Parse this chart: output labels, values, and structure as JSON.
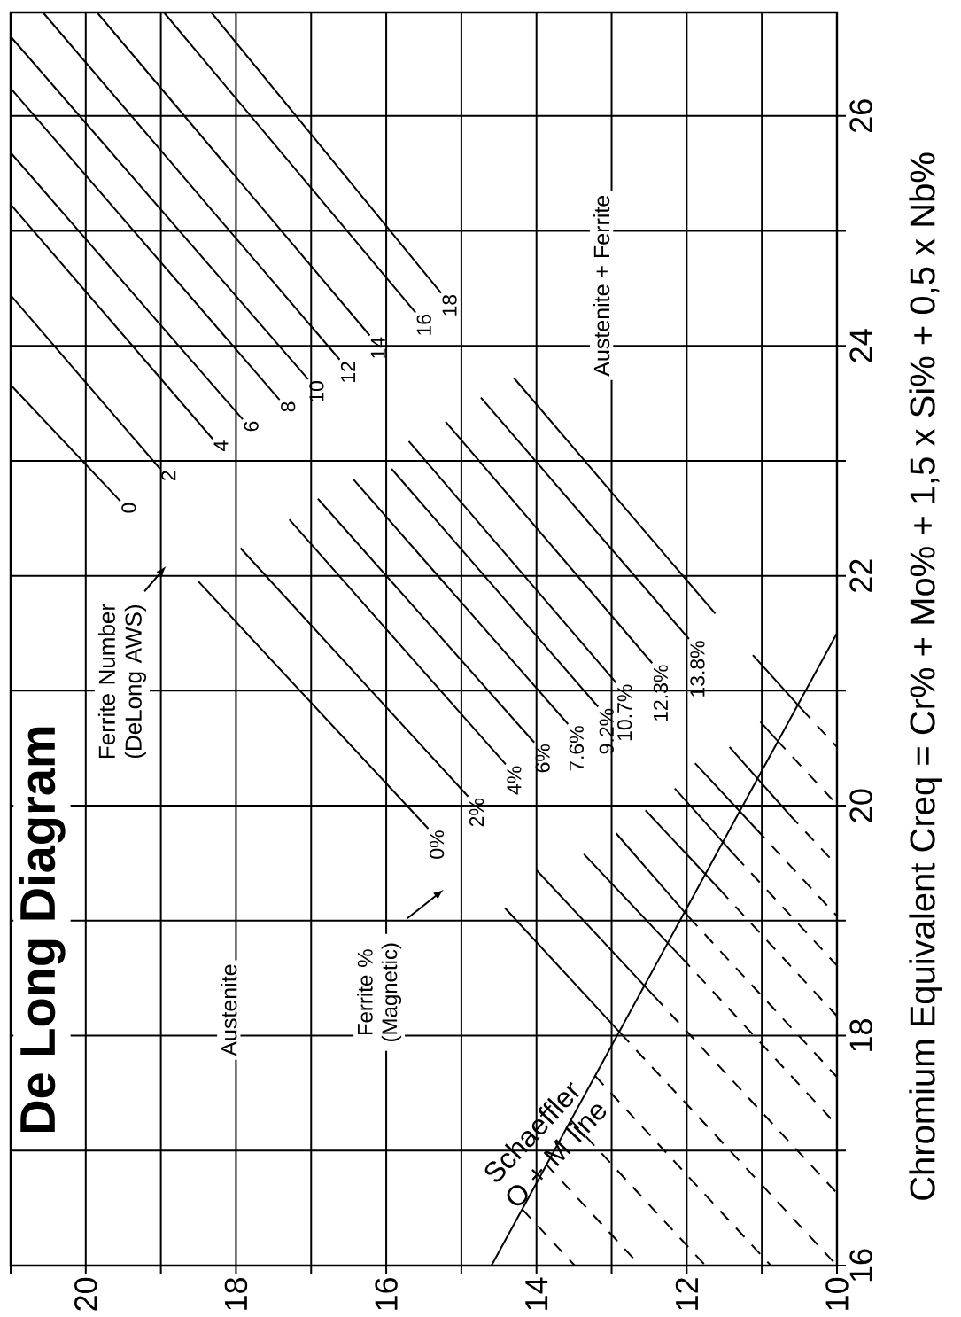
{
  "chart_data": {
    "type": "line",
    "title": "De Long Diagram",
    "ylabel": "Chromium Equivalent Creq = Cr% + Mo% + 1,5 x Si% + 0,5 x Nb%",
    "xlim": [
      21,
      10
    ],
    "ylim": [
      16,
      26.9
    ],
    "xticks": [
      {
        "value": 21,
        "label": null
      },
      20,
      {
        "value": 19,
        "label": null
      },
      18,
      {
        "value": 17,
        "label": null
      },
      16,
      {
        "value": 15,
        "label": null
      },
      14,
      {
        "value": 13,
        "label": null
      },
      12,
      {
        "value": 11,
        "label": null
      },
      10
    ],
    "yticks": [
      16,
      {
        "value": 17,
        "label": null
      },
      18,
      {
        "value": 19,
        "label": null
      },
      20,
      {
        "value": 21,
        "label": null
      },
      22,
      {
        "value": 23,
        "label": null
      },
      24,
      {
        "value": 25,
        "label": null
      },
      26
    ],
    "grid": true,
    "line_style": "solid",
    "series": [
      {
        "color": "#000000",
        "x": [
          21.0,
          19.54
        ],
        "values": [
          23.66,
          22.65
        ]
      },
      {
        "color": "#000000",
        "x": [
          18.5,
          15.44
        ],
        "values": [
          21.95,
          19.8
        ]
      },
      {
        "color": "#000000",
        "x": [
          14.42,
          12.88
        ],
        "values": [
          19.11,
          18.02
        ]
      },
      {
        "color": "#000000",
        "x": [
          12.88,
          10.0
        ],
        "values": [
          18.02,
          16.0
        ],
        "line_style": "dashed"
      },
      {
        "color": "#000000",
        "x": [
          21.0,
          19.01
        ],
        "values": [
          24.44,
          22.93
        ]
      },
      {
        "color": "#000000",
        "x": [
          17.94,
          14.91
        ],
        "values": [
          22.24,
          20.08
        ]
      },
      {
        "color": "#000000",
        "x": [
          14.0,
          12.43
        ],
        "values": [
          19.44,
          18.34
        ]
      },
      {
        "color": "#000000",
        "x": [
          12.43,
          10.0
        ],
        "values": [
          18.34,
          16.63
        ],
        "line_style": "dashed"
      },
      {
        "color": "#000000",
        "x": [
          21.0,
          18.31
        ],
        "values": [
          25.23,
          23.19
        ]
      },
      {
        "color": "#000000",
        "x": [
          17.29,
          14.41
        ],
        "values": [
          22.49,
          20.36
        ]
      },
      {
        "color": "#000000",
        "x": [
          13.37,
          12.07
        ],
        "values": [
          19.58,
          18.68
        ]
      },
      {
        "color": "#000000",
        "x": [
          12.07,
          10.0
        ],
        "values": [
          18.68,
          17.22
        ],
        "line_style": "dashed"
      },
      {
        "color": "#000000",
        "x": [
          21.0,
          17.91
        ],
        "values": [
          25.68,
          23.36
        ]
      },
      {
        "color": "#000000",
        "x": [
          16.91,
          14.03
        ],
        "values": [
          22.67,
          20.55
        ]
      },
      {
        "color": "#000000",
        "x": [
          12.94,
          11.97
        ],
        "values": [
          19.76,
          19.03
        ]
      },
      {
        "color": "#000000",
        "x": [
          11.97,
          10.0
        ],
        "values": [
          19.03,
          17.64
        ],
        "line_style": "dashed"
      },
      {
        "color": "#000000",
        "x": [
          21.0,
          17.42
        ],
        "values": [
          26.24,
          23.53
        ]
      },
      {
        "color": "#000000",
        "x": [
          16.44,
          13.58
        ],
        "values": [
          22.84,
          20.71
        ]
      },
      {
        "color": "#000000",
        "x": [
          12.55,
          11.56
        ],
        "values": [
          19.96,
          19.27
        ]
      },
      {
        "color": "#000000",
        "x": [
          11.56,
          10.0
        ],
        "values": [
          19.27,
          18.17
        ],
        "line_style": "dashed"
      },
      {
        "color": "#000000",
        "x": [
          21.0,
          17.04
        ],
        "values": [
          26.69,
          23.71
        ]
      },
      {
        "color": "#000000",
        "x": [
          15.93,
          13.18
        ],
        "values": [
          22.93,
          20.86
        ]
      },
      {
        "color": "#000000",
        "x": [
          12.16,
          11.35
        ],
        "values": [
          20.15,
          19.56
        ]
      },
      {
        "color": "#000000",
        "x": [
          11.35,
          10.0
        ],
        "values": [
          19.56,
          18.61
        ],
        "line_style": "dashed"
      },
      {
        "color": "#000000",
        "x": [
          20.57,
          16.62
        ],
        "values": [
          26.9,
          23.88
        ]
      },
      {
        "color": "#000000",
        "x": [
          15.7,
          12.94
        ],
        "values": [
          23.17,
          21.07
        ]
      },
      {
        "color": "#000000",
        "x": [
          11.89,
          11.08
        ],
        "values": [
          20.37,
          19.8
        ]
      },
      {
        "color": "#000000",
        "x": [
          11.08,
          10.0
        ],
        "values": [
          19.8,
          19.04
        ],
        "line_style": "dashed"
      },
      {
        "color": "#000000",
        "x": [
          19.85,
          16.22
        ],
        "values": [
          26.9,
          24.09
        ]
      },
      {
        "color": "#000000",
        "x": [
          15.21,
          12.46
        ],
        "values": [
          23.34,
          21.24
        ]
      },
      {
        "color": "#000000",
        "x": [
          11.43,
          10.63
        ],
        "values": [
          20.51,
          19.92
        ]
      },
      {
        "color": "#000000",
        "x": [
          10.63,
          10.0
        ],
        "values": [
          19.92,
          19.48
        ],
        "line_style": "dashed"
      },
      {
        "color": "#000000",
        "x": [
          18.96,
          15.61
        ],
        "values": [
          26.9,
          24.29
        ]
      },
      {
        "color": "#000000",
        "x": [
          14.74,
          11.97
        ],
        "values": [
          23.55,
          21.45
        ]
      },
      {
        "color": "#000000",
        "x": [
          11.02,
          10.8
        ],
        "values": [
          20.73,
          20.57
        ]
      },
      {
        "color": "#000000",
        "x": [
          10.8,
          10.0
        ],
        "values": [
          20.57,
          20.01
        ],
        "line_style": "dashed"
      },
      {
        "color": "#000000",
        "x": [
          18.33,
          15.27
        ],
        "values": [
          26.9,
          24.46
        ]
      },
      {
        "color": "#000000",
        "x": [
          14.3,
          11.62
        ],
        "values": [
          23.72,
          21.67
        ]
      },
      {
        "color": "#000000",
        "x": [
          11.12,
          10.47
        ],
        "values": [
          21.31,
          20.84
        ]
      },
      {
        "color": "#000000",
        "x": [
          10.47,
          10.0
        ],
        "values": [
          20.84,
          20.51
        ],
        "line_style": "dashed"
      },
      {
        "color": "#000000",
        "x": [
          13.22,
          10.88
        ],
        "values": [
          17.65,
          16.0
        ],
        "line_style": "dashed"
      },
      {
        "color": "#000000",
        "x": [
          13.55,
          11.75
        ],
        "values": [
          17.27,
          16.0
        ],
        "line_style": "dashed"
      },
      {
        "color": "#000000",
        "x": [
          13.87,
          12.62
        ],
        "values": [
          16.88,
          16.0
        ],
        "line_style": "dashed"
      },
      {
        "color": "#000000",
        "x": [
          14.19,
          13.49
        ],
        "values": [
          16.49,
          16.0
        ],
        "line_style": "dashed"
      },
      {
        "color": "#000000",
        "x": [
          14.6,
          10.0
        ],
        "values": [
          16.0,
          21.5
        ]
      }
    ],
    "annotations": [
      "Austenite",
      "Austenite + Ferrite",
      "Ferrite Number (DeLong AWS)",
      "Ferrite % (Magnetic)",
      "Schaeffler O + M line",
      {
        "text": "0",
        "x": 19.54,
        "y": 22.65
      },
      {
        "text": "2",
        "x": 19.01,
        "y": 22.93
      },
      {
        "text": "4",
        "x": 18.31,
        "y": 23.19
      },
      {
        "text": "6",
        "x": 17.91,
        "y": 23.36
      },
      {
        "text": "8",
        "x": 17.42,
        "y": 23.53
      },
      {
        "text": "10",
        "x": 17.04,
        "y": 23.71
      },
      {
        "text": "12",
        "x": 16.62,
        "y": 23.88
      },
      {
        "text": "14",
        "x": 16.22,
        "y": 24.09
      },
      {
        "text": "16",
        "x": 15.61,
        "y": 24.29
      },
      {
        "text": "18",
        "x": 15.27,
        "y": 24.46
      },
      {
        "text": "0%",
        "x": 15.44,
        "y": 19.8
      },
      {
        "text": "2%",
        "x": 14.91,
        "y": 20.08
      },
      {
        "text": "4%",
        "x": 14.41,
        "y": 20.36
      },
      {
        "text": "6%",
        "x": 14.03,
        "y": 20.55
      },
      {
        "text": "7.6%",
        "x": 13.58,
        "y": 20.71
      },
      {
        "text": "9.2%",
        "x": 13.18,
        "y": 20.86
      },
      {
        "text": "10.7%",
        "x": 12.94,
        "y": 21.07
      },
      {
        "text": "12.3%",
        "x": 12.46,
        "y": 21.24
      },
      {
        "text": "13.8%",
        "x": 11.97,
        "y": 21.45
      }
    ]
  }
}
